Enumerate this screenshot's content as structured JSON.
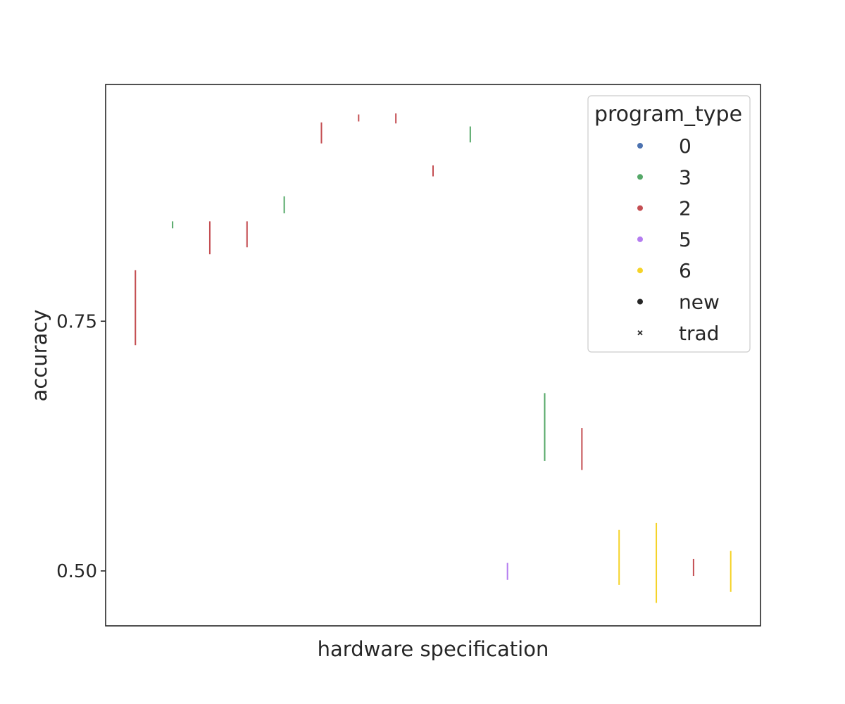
{
  "chart_data": {
    "type": "errorbar",
    "title": "",
    "xlabel": "hardware specification",
    "ylabel": "accuracy",
    "xlim": [
      -0.8,
      16.8
    ],
    "ylim": [
      0.445,
      0.987
    ],
    "yticks": [
      0.5,
      0.75
    ],
    "ytick_labels": [
      "0.50",
      "0.75"
    ],
    "grid": false,
    "legend": {
      "title": "program_type",
      "position": "top-right",
      "entries": [
        {
          "label": "0",
          "color": "#4c72b0",
          "marker": "circle"
        },
        {
          "label": "3",
          "color": "#55a868",
          "marker": "circle"
        },
        {
          "label": "2",
          "color": "#c44e52",
          "marker": "circle"
        },
        {
          "label": "5",
          "color": "#b47cf0",
          "marker": "circle"
        },
        {
          "label": "6",
          "color": "#f5d328",
          "marker": "circle"
        },
        {
          "label": "new",
          "color": "#262626",
          "marker": "circle"
        },
        {
          "label": "trad",
          "color": "#262626",
          "marker": "x"
        }
      ]
    },
    "series_colors": {
      "0": "#4c72b0",
      "3": "#55a868",
      "2": "#c44e52",
      "5": "#b47cf0",
      "6": "#f5d328"
    },
    "points": [
      {
        "x": 0,
        "program_type": "2",
        "low": 0.726,
        "high": 0.801
      },
      {
        "x": 1,
        "program_type": "3",
        "low": 0.843,
        "high": 0.85
      },
      {
        "x": 2,
        "program_type": "2",
        "low": 0.817,
        "high": 0.85
      },
      {
        "x": 3,
        "program_type": "2",
        "low": 0.824,
        "high": 0.85
      },
      {
        "x": 4,
        "program_type": "3",
        "low": 0.858,
        "high": 0.875
      },
      {
        "x": 5,
        "program_type": "2",
        "low": 0.928,
        "high": 0.949
      },
      {
        "x": 6,
        "program_type": "2",
        "low": 0.95,
        "high": 0.957
      },
      {
        "x": 7,
        "program_type": "2",
        "low": 0.948,
        "high": 0.958
      },
      {
        "x": 8,
        "program_type": "2",
        "low": 0.895,
        "high": 0.906
      },
      {
        "x": 9,
        "program_type": "3",
        "low": 0.929,
        "high": 0.945
      },
      {
        "x": 10,
        "program_type": "5",
        "low": 0.491,
        "high": 0.508
      },
      {
        "x": 11,
        "program_type": "3",
        "low": 0.61,
        "high": 0.678
      },
      {
        "x": 12,
        "program_type": "2",
        "low": 0.601,
        "high": 0.643
      },
      {
        "x": 13,
        "program_type": "6",
        "low": 0.486,
        "high": 0.541
      },
      {
        "x": 14,
        "program_type": "6",
        "low": 0.468,
        "high": 0.548
      },
      {
        "x": 15,
        "program_type": "2",
        "low": 0.495,
        "high": 0.512
      },
      {
        "x": 16,
        "program_type": "6",
        "low": 0.479,
        "high": 0.52
      }
    ]
  }
}
